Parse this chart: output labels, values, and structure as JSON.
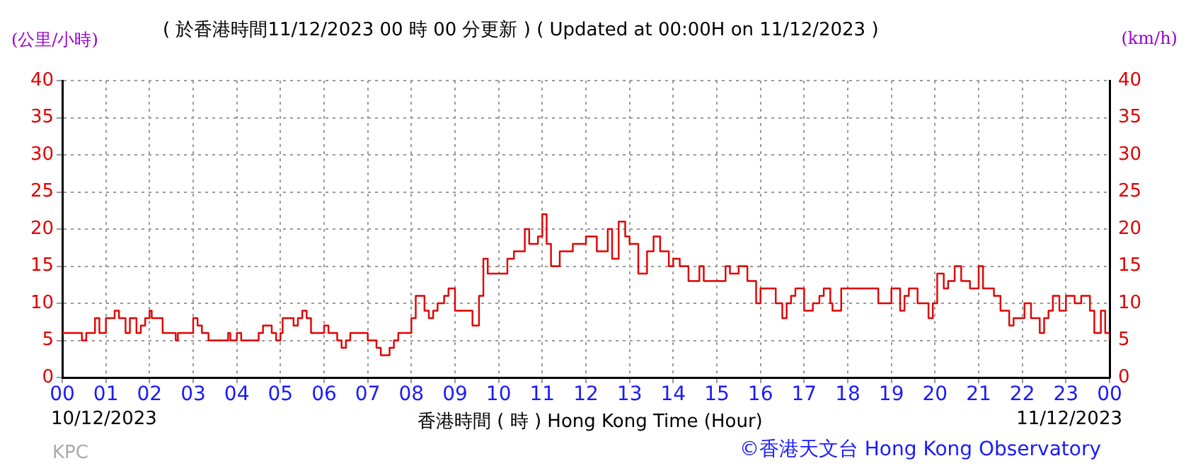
{
  "chart_data": {
    "type": "step",
    "title": "( 於香港時間11/12/2023 00 時 00 分更新 ) ( Updated at 00:00H on 11/12/2023 )",
    "xlabel": "香港時間 ( 時 ) Hong Kong Time (Hour)",
    "ylabel": "(公里/小時)",
    "y2label": "(km/h)",
    "annotations": [
      "10/12/2023",
      "11/12/2023",
      "KPC",
      "©香港天文台 Hong Kong Observatory"
    ],
    "x": [
      0,
      0.45,
      0.55,
      0.75,
      0.85,
      1.0,
      1.2,
      1.3,
      1.45,
      1.55,
      1.7,
      1.8,
      1.9,
      2.0,
      2.05,
      2.3,
      2.6,
      2.65,
      3.0,
      3.1,
      3.2,
      3.35,
      3.8,
      3.85,
      4.0,
      4.1,
      4.5,
      4.6,
      4.8,
      4.9,
      5.0,
      5.05,
      5.3,
      5.4,
      5.5,
      5.6,
      5.7,
      6.0,
      6.1,
      6.3,
      6.4,
      6.5,
      6.6,
      7.0,
      7.2,
      7.3,
      7.5,
      7.6,
      7.7,
      8.0,
      8.1,
      8.3,
      8.4,
      8.5,
      8.6,
      8.75,
      8.85,
      9.0,
      9.4,
      9.55,
      9.65,
      9.75,
      10.0,
      10.2,
      10.35,
      10.6,
      10.7,
      10.9,
      11.0,
      11.1,
      11.2,
      11.4,
      11.7,
      12.0,
      12.25,
      12.5,
      12.6,
      12.75,
      12.9,
      13.0,
      13.2,
      13.4,
      13.55,
      13.7,
      13.9,
      14.0,
      14.15,
      14.35,
      14.6,
      14.7,
      15.2,
      15.3,
      15.5,
      15.7,
      15.9,
      16.0,
      16.35,
      16.5,
      16.6,
      16.7,
      16.8,
      17.0,
      17.2,
      17.35,
      17.45,
      17.6,
      17.65,
      17.85,
      18.7,
      19.0,
      19.2,
      19.3,
      19.4,
      19.6,
      19.85,
      19.95,
      20.05,
      20.2,
      20.3,
      20.45,
      20.6,
      20.8,
      21.0,
      21.1,
      21.35,
      21.5,
      21.7,
      21.8,
      22.05,
      22.2,
      22.4,
      22.5,
      22.6,
      22.7,
      22.85,
      23.0,
      23.2,
      23.35,
      23.55,
      23.65,
      23.8,
      23.9,
      24
    ],
    "series": [
      {
        "color": "#e00000",
        "values": [
          6,
          5,
          6,
          8,
          6,
          8,
          9,
          8,
          6,
          8,
          6,
          7,
          8,
          9,
          8,
          6,
          5,
          6,
          8,
          7,
          6,
          5,
          6,
          5,
          6,
          5,
          6,
          7,
          6,
          5,
          6,
          8,
          7,
          8,
          9,
          8,
          6,
          7,
          6,
          5,
          4,
          5,
          6,
          5,
          4,
          3,
          4,
          5,
          6,
          8,
          11,
          9,
          8,
          9,
          10,
          11,
          12,
          9,
          7,
          11,
          16,
          14,
          14,
          16,
          17,
          20,
          18,
          19,
          22,
          18,
          15,
          17,
          18,
          19,
          17,
          20,
          16,
          21,
          19,
          18,
          14,
          17,
          19,
          17,
          15,
          16,
          15,
          13,
          15,
          13,
          15,
          14,
          15,
          13,
          10,
          12,
          10,
          8,
          10,
          11,
          12,
          9,
          10,
          11,
          12,
          10,
          9,
          12,
          10,
          12,
          9,
          11,
          12,
          10,
          8,
          10,
          14,
          12,
          13,
          15,
          13,
          12,
          15,
          12,
          11,
          9,
          7,
          8,
          10,
          8,
          6,
          8,
          9,
          11,
          9,
          11,
          10,
          11,
          9,
          6,
          9,
          6,
          5
        ]
      }
    ],
    "xlim": [
      0,
      24
    ],
    "xticks": [
      {
        "value": 0,
        "label": "00"
      },
      {
        "value": 1,
        "label": "01"
      },
      {
        "value": 2,
        "label": "02"
      },
      {
        "value": 3,
        "label": "03"
      },
      {
        "value": 4,
        "label": "04"
      },
      {
        "value": 5,
        "label": "05"
      },
      {
        "value": 6,
        "label": "06"
      },
      {
        "value": 7,
        "label": "07"
      },
      {
        "value": 8,
        "label": "08"
      },
      {
        "value": 9,
        "label": "09"
      },
      {
        "value": 10,
        "label": "10"
      },
      {
        "value": 11,
        "label": "11"
      },
      {
        "value": 12,
        "label": "12"
      },
      {
        "value": 13,
        "label": "13"
      },
      {
        "value": 14,
        "label": "14"
      },
      {
        "value": 15,
        "label": "15"
      },
      {
        "value": 16,
        "label": "16"
      },
      {
        "value": 17,
        "label": "17"
      },
      {
        "value": 18,
        "label": "18"
      },
      {
        "value": 19,
        "label": "19"
      },
      {
        "value": 20,
        "label": "20"
      },
      {
        "value": 21,
        "label": "21"
      },
      {
        "value": 22,
        "label": "22"
      },
      {
        "value": 23,
        "label": "23"
      },
      {
        "value": 24,
        "label": "00"
      }
    ],
    "ylim": [
      0,
      40
    ],
    "yticks": [
      0,
      5,
      10,
      15,
      20,
      25,
      30,
      35,
      40
    ],
    "y2lim": [
      0,
      40
    ],
    "y2ticks": [
      0,
      5,
      10,
      15,
      20,
      25,
      30,
      35,
      40
    ],
    "grid": true,
    "legend": false,
    "marker": "none",
    "line_style": "solid"
  }
}
